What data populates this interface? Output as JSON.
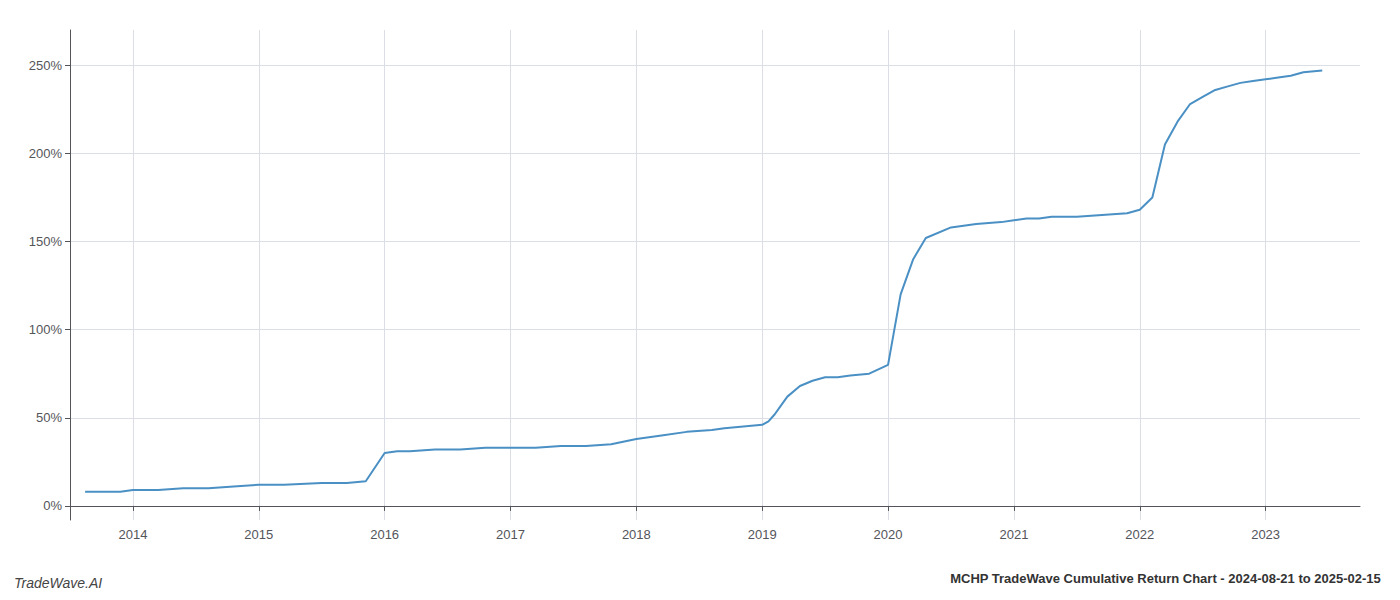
{
  "chart_data": {
    "type": "line",
    "title": "MCHP TradeWave Cumulative Return Chart - 2024-08-21 to 2025-02-15",
    "annotations": [
      "TradeWave.AI"
    ],
    "color": "#4a90c4",
    "grid": true,
    "x": [
      2013.62,
      2013.75,
      2013.9,
      2014.0,
      2014.1,
      2014.2,
      2014.4,
      2014.6,
      2014.8,
      2015.0,
      2015.1,
      2015.2,
      2015.5,
      2015.7,
      2015.85,
      2016.0,
      2016.1,
      2016.2,
      2016.4,
      2016.5,
      2016.6,
      2016.8,
      2017.0,
      2017.2,
      2017.4,
      2017.6,
      2017.8,
      2018.0,
      2018.2,
      2018.4,
      2018.6,
      2018.7,
      2018.85,
      2019.0,
      2019.05,
      2019.1,
      2019.15,
      2019.2,
      2019.3,
      2019.4,
      2019.5,
      2019.6,
      2019.7,
      2019.85,
      2020.0,
      2020.05,
      2020.1,
      2020.2,
      2020.3,
      2020.5,
      2020.7,
      2020.9,
      2021.0,
      2021.1,
      2021.2,
      2021.3,
      2021.5,
      2021.7,
      2021.9,
      2022.0,
      2022.1,
      2022.15,
      2022.2,
      2022.3,
      2022.4,
      2022.5,
      2022.6,
      2022.7,
      2022.8,
      2022.9,
      2023.0,
      2023.1,
      2023.2,
      2023.3,
      2023.45
    ],
    "values": [
      8,
      8,
      8,
      9,
      9,
      9,
      10,
      10,
      11,
      12,
      12,
      12,
      13,
      13,
      14,
      30,
      31,
      31,
      32,
      32,
      32,
      33,
      33,
      33,
      34,
      34,
      35,
      38,
      40,
      42,
      43,
      44,
      45,
      46,
      48,
      52,
      57,
      62,
      68,
      71,
      73,
      73,
      74,
      75,
      80,
      100,
      120,
      140,
      152,
      158,
      160,
      161,
      162,
      163,
      163,
      164,
      164,
      165,
      166,
      168,
      175,
      190,
      205,
      218,
      228,
      232,
      236,
      238,
      240,
      241,
      242,
      243,
      244,
      246,
      247
    ],
    "xlim": [
      2013.5,
      2023.75
    ],
    "xticks": [
      2014,
      2015,
      2016,
      2017,
      2018,
      2019,
      2020,
      2021,
      2022,
      2023
    ],
    "ylim": [
      -8,
      270
    ],
    "yticks": [
      {
        "value": 0,
        "label": "0%"
      },
      {
        "value": 50,
        "label": "50%"
      },
      {
        "value": 100,
        "label": "100%"
      },
      {
        "value": 150,
        "label": "150%"
      },
      {
        "value": 200,
        "label": "200%"
      },
      {
        "value": 250,
        "label": "250%"
      }
    ]
  }
}
